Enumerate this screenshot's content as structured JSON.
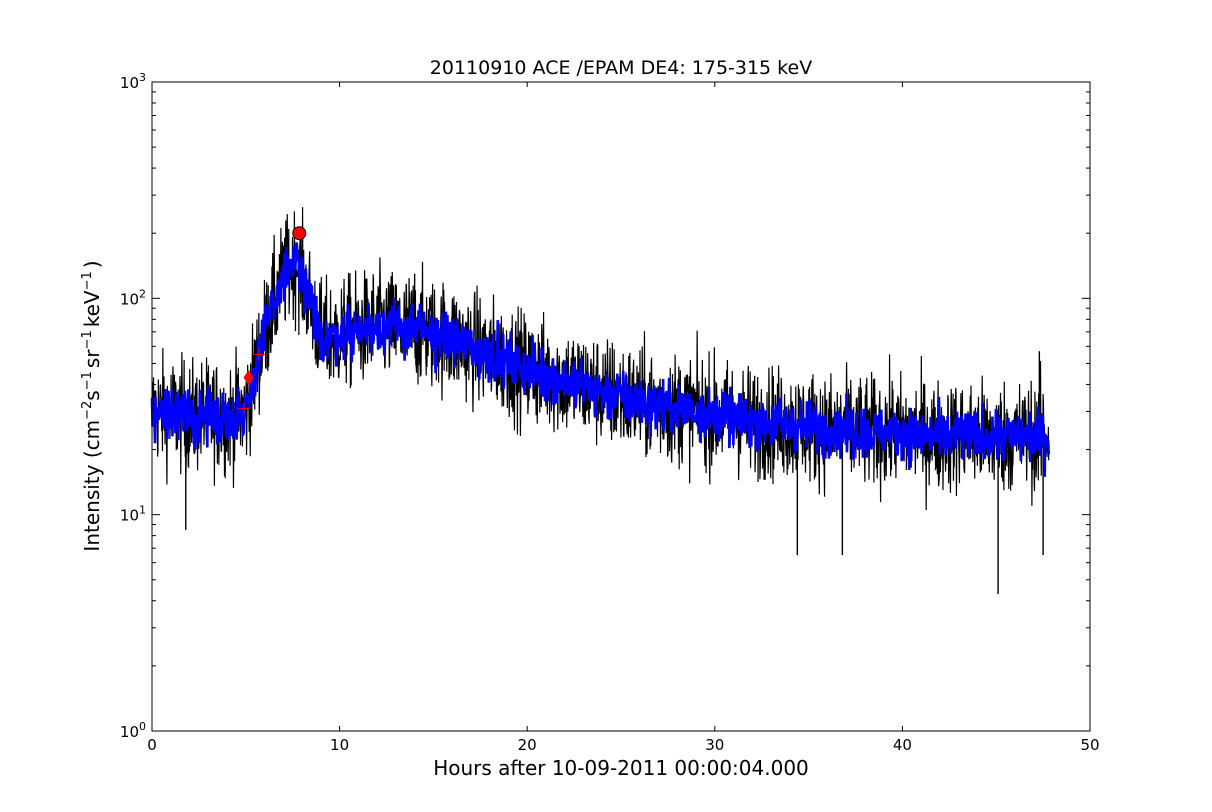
{
  "chart_data": {
    "type": "line",
    "title": "20110910 ACE /EPAM DE4: 175-315 keV",
    "xlabel": "Hours after 10-09-2011 00:00:04.000",
    "ylabel_main": "Intensity (cm",
    "ylabel_exp1": "−2",
    "ylabel_s": "s",
    "ylabel_exp2": "−1",
    "ylabel_sr": "sr",
    "ylabel_exp3": "−1",
    "ylabel_kev": "keV",
    "ylabel_exp4": "−1",
    "ylabel_close": ")",
    "xlim": [
      0,
      50
    ],
    "ylim": [
      1,
      1000
    ],
    "yscale": "log",
    "grid": false,
    "x_ticks": [
      0,
      10,
      20,
      30,
      40,
      50
    ],
    "x_tick_labels": [
      "0",
      "10",
      "20",
      "30",
      "40",
      "50"
    ],
    "y_ticks": [
      {
        "value": 1,
        "base": "10",
        "exp": "0"
      },
      {
        "value": 10,
        "base": "10",
        "exp": "1"
      },
      {
        "value": 100,
        "base": "10",
        "exp": "2"
      },
      {
        "value": 1000,
        "base": "10",
        "exp": "3"
      }
    ],
    "colors": {
      "raw": "#000000",
      "smoothed": "#0000ff",
      "marker": "#ff0000"
    },
    "series": [
      {
        "name": "",
        "style": "raw",
        "envelope": {
          "x": [
            0,
            1,
            2,
            3,
            4,
            5,
            5.6,
            6.2,
            7,
            7.7,
            8.3,
            8.9,
            9.1,
            10,
            12,
            14,
            16,
            18,
            20,
            22,
            24,
            26,
            28,
            30,
            32,
            34,
            36,
            38,
            40,
            42,
            44,
            46,
            47.8
          ],
          "y": [
            30,
            30,
            28,
            29,
            28,
            30,
            50,
            80,
            125,
            150,
            105,
            70,
            65,
            68,
            75,
            72,
            65,
            55,
            47,
            42,
            37,
            33,
            31,
            29,
            27,
            26,
            25,
            24,
            24,
            23,
            23,
            23,
            23
          ],
          "log_spread": 0.13
        },
        "spikes": [
          {
            "x": 1.8,
            "y": 8.5
          },
          {
            "x": 34.4,
            "y": 6.5
          },
          {
            "x": 36.8,
            "y": 6.5
          },
          {
            "x": 45.1,
            "y": 4.3
          },
          {
            "x": 47.5,
            "y": 6.5
          },
          {
            "x": 47.3,
            "y": 57
          },
          {
            "x": 14,
            "y": 130
          },
          {
            "x": 11.8,
            "y": 125
          }
        ]
      },
      {
        "name": "",
        "style": "smoothed",
        "x": [
          0,
          1,
          2,
          3,
          4,
          5,
          5.6,
          6.2,
          7,
          7.7,
          8.3,
          8.9,
          9.1,
          10,
          12,
          14,
          16,
          18,
          20,
          22,
          24,
          26,
          28,
          30,
          32,
          34,
          36,
          38,
          40,
          42,
          44,
          46,
          47.8
        ],
        "y": [
          30,
          30,
          28,
          29,
          28,
          30,
          50,
          80,
          125,
          150,
          105,
          70,
          65,
          68,
          75,
          72,
          65,
          55,
          47,
          42,
          37,
          33,
          31,
          29,
          27,
          26,
          25,
          24,
          24,
          23,
          23,
          23,
          23
        ],
        "log_spread": 0.06
      }
    ],
    "markers": [
      {
        "shape": "circle",
        "x": 7.85,
        "y": 200
      },
      {
        "shape": "diamond",
        "x": 5.15,
        "y": 43
      },
      {
        "shape": "plus",
        "x": 4.9,
        "y": 31
      },
      {
        "shape": "plus",
        "x": 5.7,
        "y": 55
      }
    ]
  }
}
